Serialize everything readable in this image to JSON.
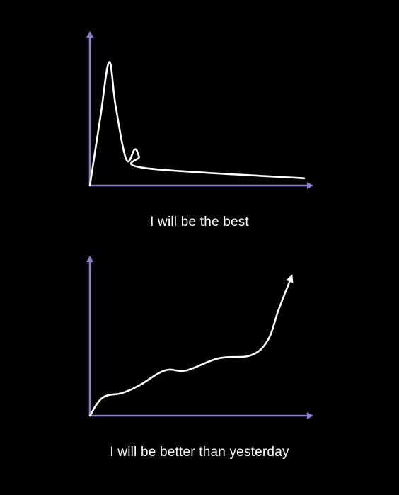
{
  "colors": {
    "background": "#000000",
    "axis": "#8c7fd1",
    "line": "#ffffff",
    "caption": "#ffffff"
  },
  "chart_data": [
    {
      "type": "line",
      "caption": "I will be the best",
      "grid": false,
      "xlim": [
        0,
        100
      ],
      "ylim": [
        0,
        100
      ],
      "series": [
        {
          "x": [
            0,
            5,
            9,
            12,
            17,
            21,
            23,
            26,
            100
          ],
          "y": [
            0,
            48,
            85,
            55,
            18,
            25,
            20,
            12,
            5
          ]
        }
      ]
    },
    {
      "type": "line",
      "caption": "I will be better than yesterday",
      "grid": false,
      "xlim": [
        0,
        100
      ],
      "ylim": [
        0,
        100
      ],
      "series": [
        {
          "x": [
            0,
            6,
            15,
            23,
            35,
            45,
            60,
            75,
            83,
            88,
            94
          ],
          "y": [
            0,
            12,
            15,
            20,
            30,
            30,
            38,
            40,
            50,
            70,
            92
          ]
        }
      ]
    }
  ]
}
